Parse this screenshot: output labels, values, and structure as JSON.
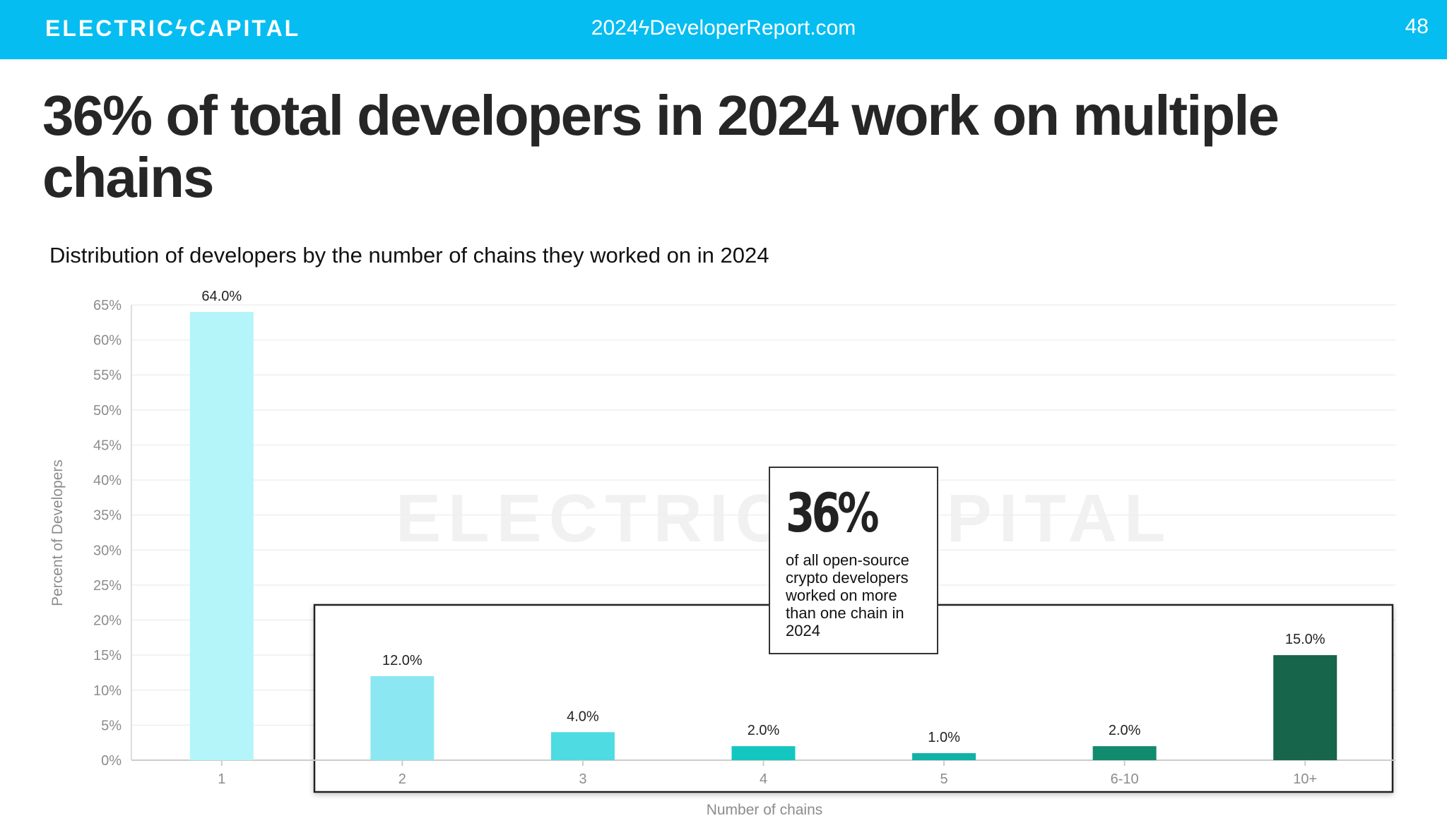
{
  "header": {
    "brand": "ELECTRICϟCAPITAL",
    "site_prefix": "2024",
    "site_suffix": "DeveloperReport.com",
    "page_number": "48",
    "bar_color": "#05bdf1",
    "bolt_icon": "lightning-bolt-icon"
  },
  "headline": "36% of total developers in 2024 work on multiple chains",
  "watermark": "ELECTRICϟCAPITAL",
  "callout": {
    "value": "36%",
    "text": "of all open-source crypto developers worked on more than one chain in 2024"
  },
  "chart_data": {
    "type": "bar",
    "title": "Distribution of developers by the number of chains they worked on in 2024",
    "xlabel": "Number of chains",
    "ylabel": "Percent of Developers",
    "categories": [
      "1",
      "2",
      "3",
      "4",
      "5",
      "6-10",
      "10+"
    ],
    "values": [
      64.0,
      12.0,
      4.0,
      2.0,
      1.0,
      2.0,
      15.0
    ],
    "value_labels": [
      "64.0%",
      "12.0%",
      "4.0%",
      "2.0%",
      "1.0%",
      "2.0%",
      "15.0%"
    ],
    "colors": [
      "#b4f5fa",
      "#8be8f2",
      "#4fdbe2",
      "#14c6c0",
      "#0fb1a8",
      "#118a6e",
      "#17654a"
    ],
    "ylim": [
      0,
      65
    ],
    "yticks": [
      0,
      5,
      10,
      15,
      20,
      25,
      30,
      35,
      40,
      45,
      50,
      55,
      60,
      65
    ],
    "ytick_labels": [
      "0%",
      "5%",
      "10%",
      "15%",
      "20%",
      "25%",
      "30%",
      "35%",
      "40%",
      "45%",
      "50%",
      "55%",
      "60%",
      "65%"
    ],
    "grid": true,
    "highlight": "Bars 2 through 10+ are enclosed in a highlight box"
  }
}
